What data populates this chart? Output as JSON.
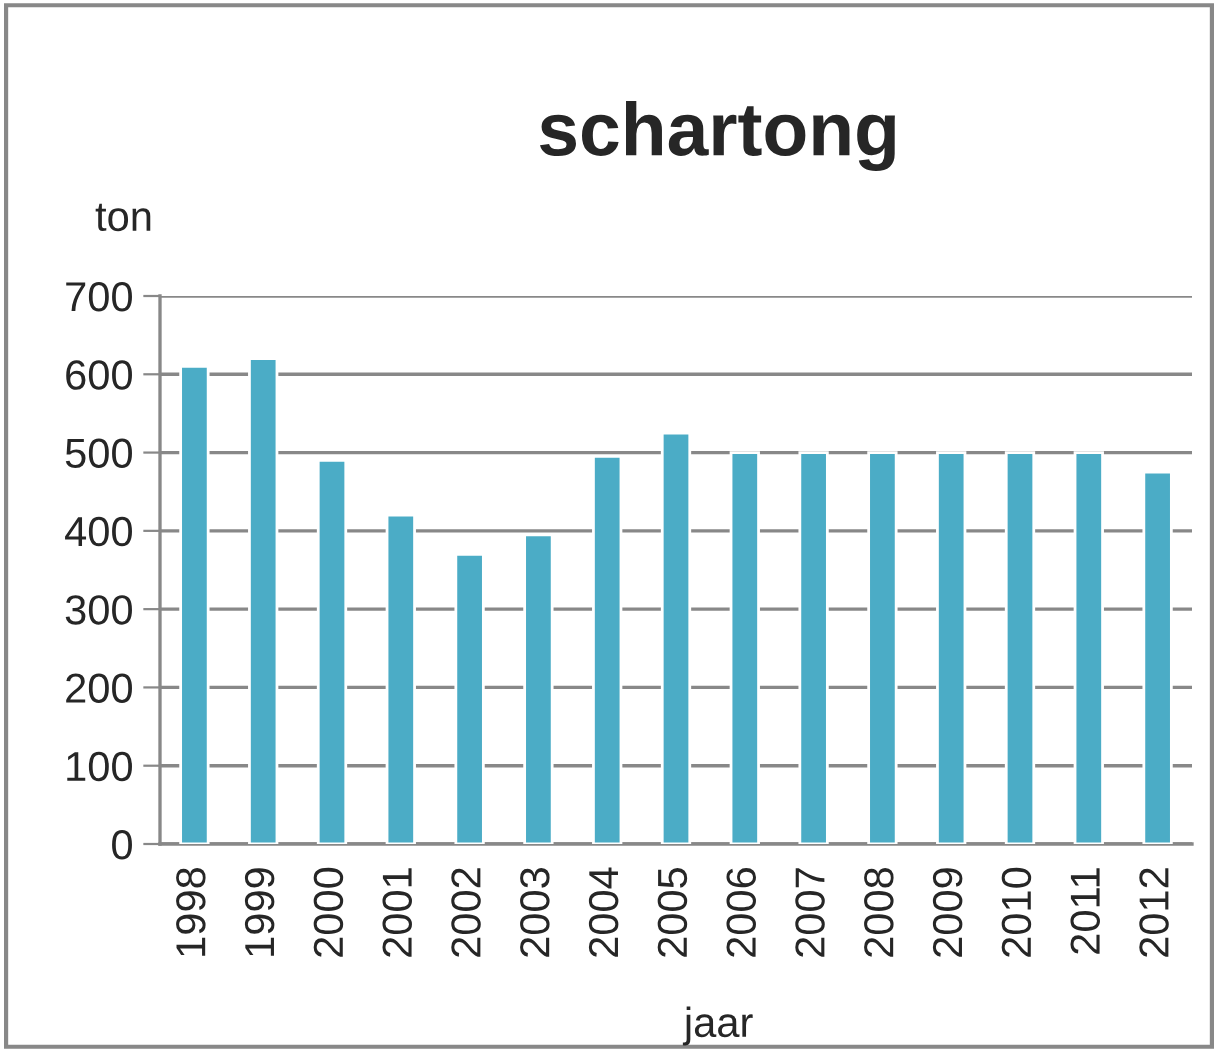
{
  "chart_data": {
    "type": "bar",
    "title": "schartong",
    "ylabel": "ton",
    "xlabel": "jaar",
    "categories": [
      "1998",
      "1999",
      "2000",
      "2001",
      "2002",
      "2003",
      "2004",
      "2005",
      "2006",
      "2007",
      "2008",
      "2009",
      "2010",
      "2011",
      "2012"
    ],
    "values": [
      610,
      620,
      490,
      420,
      370,
      395,
      495,
      525,
      500,
      500,
      500,
      500,
      500,
      500,
      475
    ],
    "color": "#4bacc6",
    "ylim": [
      0,
      700
    ],
    "yticks": [
      0,
      100,
      200,
      300,
      400,
      500,
      600,
      700
    ],
    "grid": "y",
    "legend": false
  }
}
